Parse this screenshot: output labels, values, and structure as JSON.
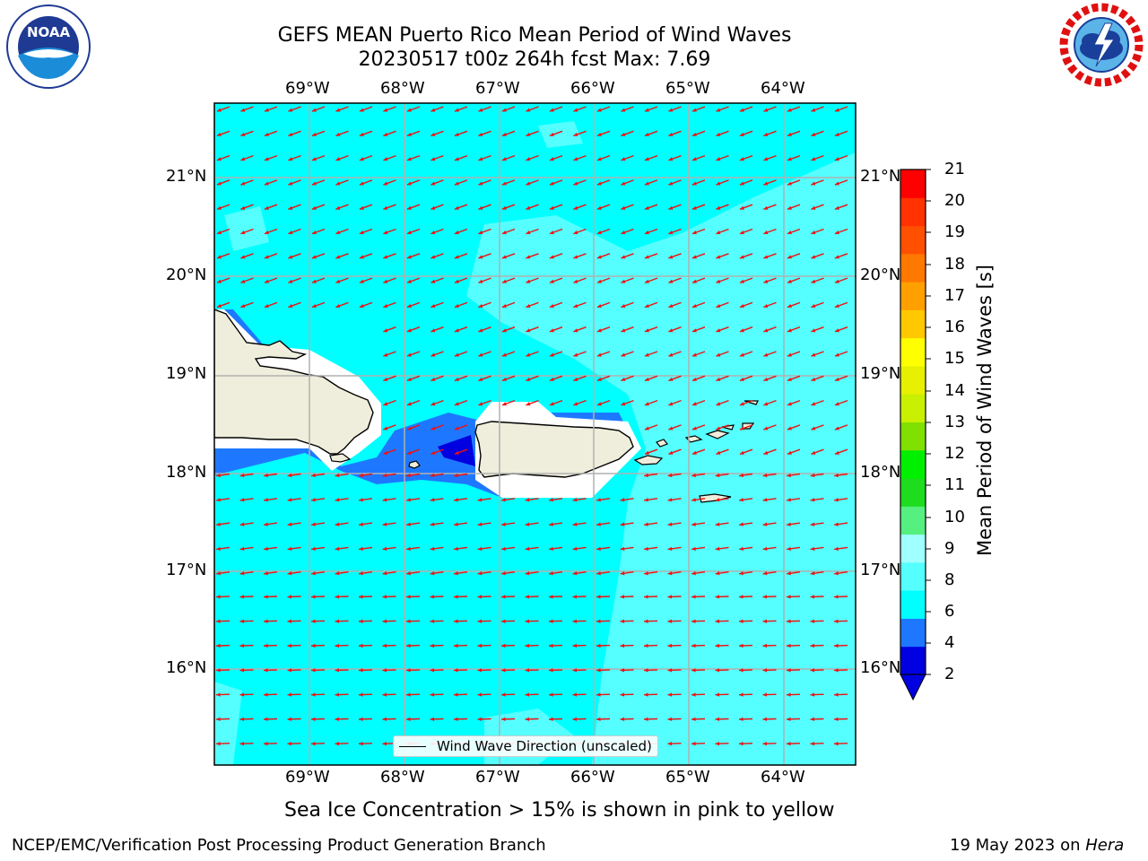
{
  "title": {
    "line1": "GEFS MEAN Puerto Rico Mean Period of Wind Waves",
    "line2": "20230517 t00z 264h fcst   Max: 7.69"
  },
  "map": {
    "lon_ticks": [
      "69°W",
      "68°W",
      "67°W",
      "66°W",
      "65°W",
      "64°W"
    ],
    "lat_ticks": [
      "21°N",
      "20°N",
      "19°N",
      "18°N",
      "17°N",
      "16°N"
    ],
    "legend_label": "Wind Wave Direction (unscaled)"
  },
  "colorbar": {
    "label": "Mean Period of Wind Waves [s]",
    "ticks": [
      "21",
      "20",
      "19",
      "18",
      "17",
      "16",
      "15",
      "14",
      "13",
      "12",
      "11",
      "10",
      "9",
      "8",
      "6",
      "4",
      "2"
    ],
    "colors": [
      "#0000e0",
      "#1e78ff",
      "#00ffff",
      "#55ffff",
      "#a0ffff",
      "#55f080",
      "#1edc1e",
      "#00f000",
      "#80e000",
      "#c8f000",
      "#e6f000",
      "#ffff00",
      "#ffc800",
      "#ffa000",
      "#ff7800",
      "#ff5000",
      "#ff3200",
      "#ff0000"
    ],
    "under_color": "#0000e0"
  },
  "notes": {
    "sea_ice": "Sea Ice Concentration > 15% is shown in pink to yellow"
  },
  "footer": {
    "left": "NCEP/EMC/Verification Post Processing Product Generation Branch",
    "date": "19 May 2023 on ",
    "machine": "Hera"
  },
  "logos": {
    "noaa": "NOAA",
    "nws": "NATIONAL WEATHER SERVICE"
  }
}
